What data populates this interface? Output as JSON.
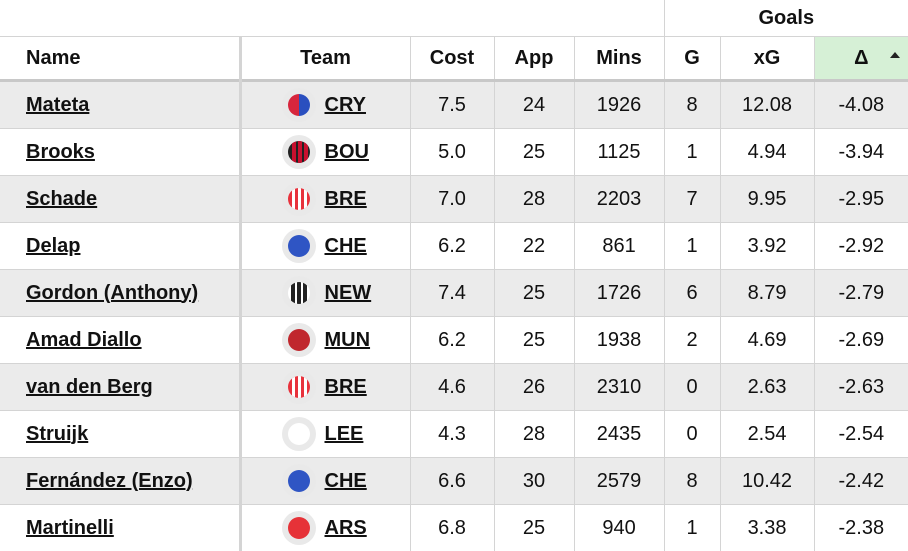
{
  "group_header": {
    "goals": "Goals"
  },
  "columns": {
    "name": "Name",
    "team": "Team",
    "cost": "Cost",
    "app": "App",
    "mins": "Mins",
    "g": "G",
    "xg": "xG",
    "delta": "Δ"
  },
  "colors": {
    "delta_header_bg": "#d6f0d6",
    "alt_row_bg": "#ebebeb"
  },
  "rows": [
    {
      "name": "Mateta",
      "team": "CRY",
      "cost": "7.5",
      "app": "24",
      "mins": "1926",
      "g": "8",
      "xg": "12.08",
      "delta": "-4.08",
      "badge": "split-red-blue"
    },
    {
      "name": "Brooks",
      "team": "BOU",
      "cost": "5.0",
      "app": "25",
      "mins": "1125",
      "g": "1",
      "xg": "4.94",
      "delta": "-3.94",
      "badge": "red-black-stripes"
    },
    {
      "name": "Schade",
      "team": "BRE",
      "cost": "7.0",
      "app": "28",
      "mins": "2203",
      "g": "7",
      "xg": "9.95",
      "delta": "-2.95",
      "badge": "red-white-stripes"
    },
    {
      "name": "Delap",
      "team": "CHE",
      "cost": "6.2",
      "app": "22",
      "mins": "861",
      "g": "1",
      "xg": "3.92",
      "delta": "-2.92",
      "badge": "solid-blue"
    },
    {
      "name": "Gordon (Anthony)",
      "team": "NEW",
      "cost": "7.4",
      "app": "25",
      "mins": "1726",
      "g": "6",
      "xg": "8.79",
      "delta": "-2.79",
      "badge": "black-white-stripes"
    },
    {
      "name": "Amad Diallo",
      "team": "MUN",
      "cost": "6.2",
      "app": "25",
      "mins": "1938",
      "g": "2",
      "xg": "4.69",
      "delta": "-2.69",
      "badge": "solid-darkred"
    },
    {
      "name": "van den Berg",
      "team": "BRE",
      "cost": "4.6",
      "app": "26",
      "mins": "2310",
      "g": "0",
      "xg": "2.63",
      "delta": "-2.63",
      "badge": "red-white-stripes"
    },
    {
      "name": "Struijk",
      "team": "LEE",
      "cost": "4.3",
      "app": "28",
      "mins": "2435",
      "g": "0",
      "xg": "2.54",
      "delta": "-2.54",
      "badge": "solid-white"
    },
    {
      "name": "Fernández (Enzo)",
      "team": "CHE",
      "cost": "6.6",
      "app": "30",
      "mins": "2579",
      "g": "8",
      "xg": "10.42",
      "delta": "-2.42",
      "badge": "solid-blue"
    },
    {
      "name": "Martinelli",
      "team": "ARS",
      "cost": "6.8",
      "app": "25",
      "mins": "940",
      "g": "1",
      "xg": "3.38",
      "delta": "-2.38",
      "badge": "solid-red"
    }
  ]
}
